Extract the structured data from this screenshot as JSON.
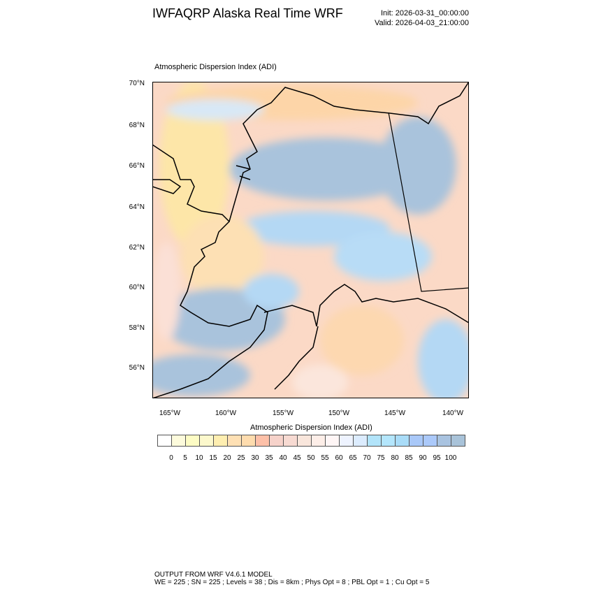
{
  "title": "IWFAQRP Alaska Real Time WRF",
  "init": "Init: 2026-03-31_00:00:00",
  "valid": "Valid: 2026-04-03_21:00:00",
  "subtitle": "Atmospheric Dispersion Index   (ADI)",
  "lat_labels": [
    "70°N",
    "68°N",
    "66°N",
    "64°N",
    "62°N",
    "60°N",
    "58°N",
    "56°N"
  ],
  "lon_labels": [
    "165°W",
    "160°W",
    "155°W",
    "150°W",
    "145°W",
    "140°W"
  ],
  "colorbar": {
    "title": "Atmospheric Dispersion Index  (ADI)",
    "labels": [
      "0",
      "5",
      "10",
      "15",
      "20",
      "25",
      "30",
      "35",
      "40",
      "45",
      "50",
      "55",
      "60",
      "65",
      "70",
      "75",
      "80",
      "85",
      "90",
      "95",
      "100"
    ],
    "colors": [
      "#ffffff",
      "#fdfbdc",
      "#fdfcc4",
      "#fcf8cc",
      "#feeeb0",
      "#fee0b4",
      "#fedcae",
      "#fdc0a8",
      "#f6d2ca",
      "#f7dad2",
      "#f9e6dc",
      "#fdeee8",
      "#fff6f6",
      "#eef3ff",
      "#dcecfe",
      "#b2e4fa",
      "#b4e6fc",
      "#a9dcf8",
      "#a9c8f8",
      "#abc9fa",
      "#a9c3e0",
      "#a9c3d9"
    ]
  },
  "footer": {
    "line1": "OUTPUT FROM WRF V4.6.1 MODEL",
    "line2": "WE = 225 ; SN = 225 ; Levels = 38 ; Dis = 8km ; Phys Opt = 8 ; PBL Opt = 1 ; Cu Opt = 5"
  }
}
